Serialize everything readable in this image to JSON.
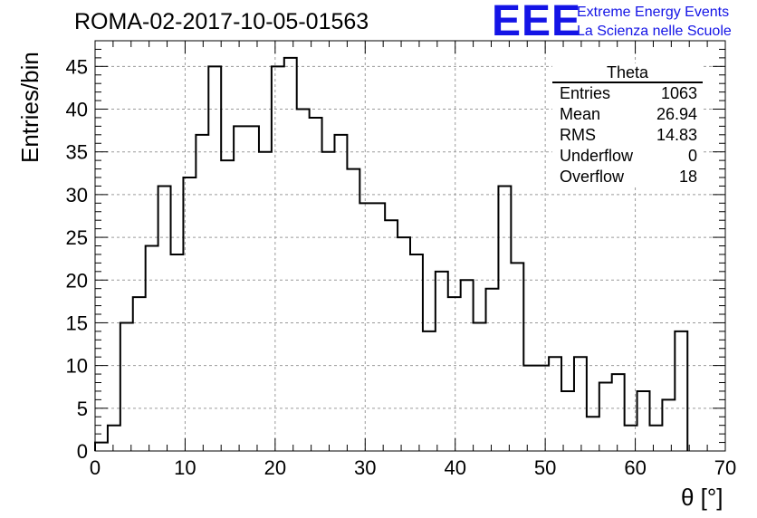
{
  "header": {
    "title": "ROMA-02-2017-10-05-01563",
    "logo": "EEE",
    "logo_line1": "Extreme Energy Events",
    "logo_line2": "La Scienza nelle Scuole"
  },
  "stats_box": {
    "title": "Theta",
    "rows": [
      {
        "label": "Entries",
        "value": "1063"
      },
      {
        "label": "Mean",
        "value": "26.94"
      },
      {
        "label": "RMS",
        "value": "14.83"
      },
      {
        "label": "Underflow",
        "value": "0"
      },
      {
        "label": "Overflow",
        "value": "18"
      }
    ]
  },
  "chart_data": {
    "type": "bar",
    "style": "step-histogram",
    "ylabel": "Entries/bin",
    "xlabel": "θ [°]",
    "xlim": [
      0,
      70
    ],
    "ylim": [
      0,
      48
    ],
    "bin_width": 1.4,
    "xticks": [
      0,
      10,
      20,
      30,
      40,
      50,
      60,
      70
    ],
    "yticks": [
      0,
      5,
      10,
      15,
      20,
      25,
      30,
      35,
      40,
      45
    ],
    "grid": true,
    "values": [
      1,
      3,
      15,
      18,
      24,
      31,
      23,
      32,
      37,
      45,
      34,
      38,
      38,
      35,
      45,
      46,
      40,
      39,
      35,
      37,
      33,
      29,
      29,
      27,
      25,
      23,
      14,
      21,
      18,
      20,
      15,
      19,
      31,
      22,
      10,
      10,
      11,
      7,
      11,
      4,
      8,
      9,
      3,
      7,
      3,
      6,
      14,
      0,
      0,
      0
    ]
  }
}
